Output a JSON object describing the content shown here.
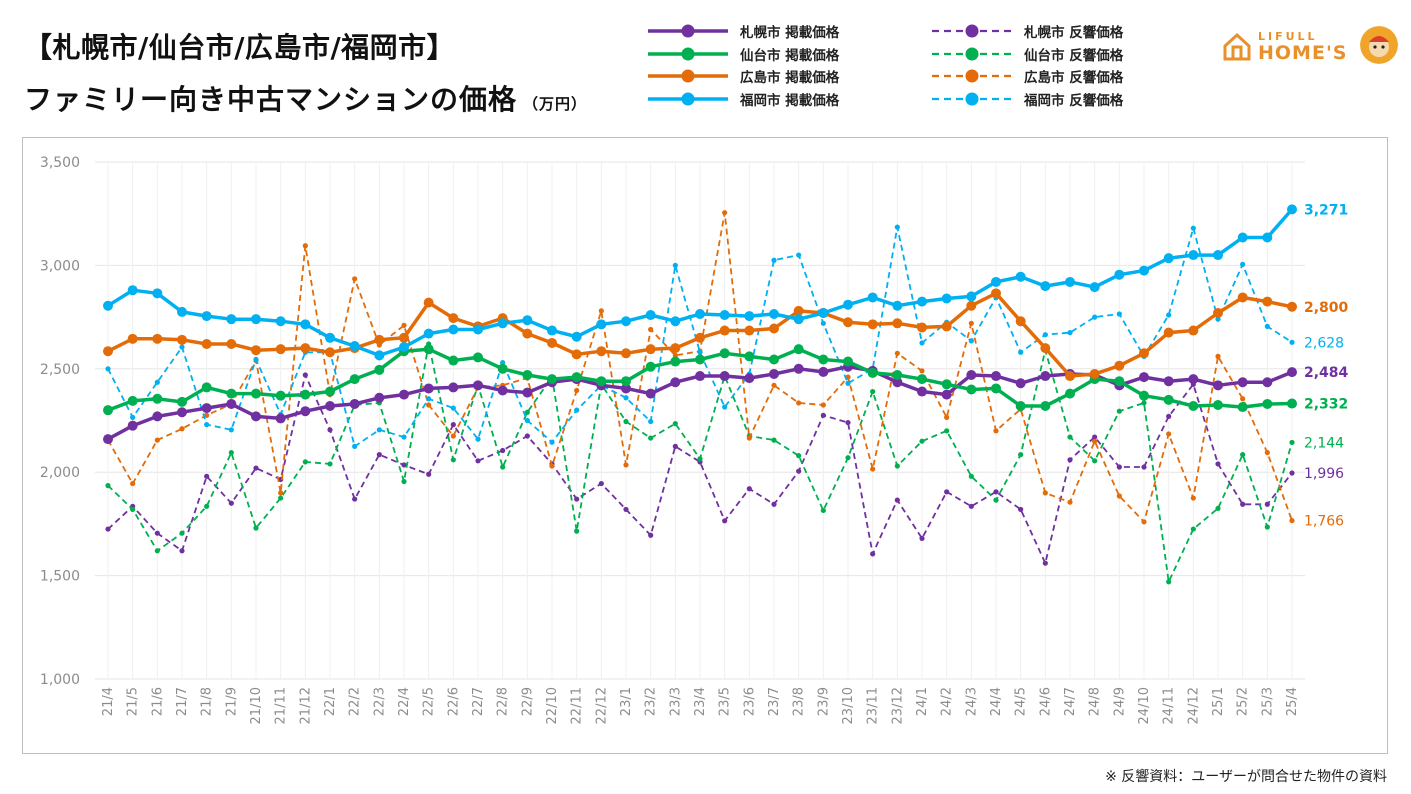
{
  "title_line1": "【札幌市/仙台市/広島市/福岡市】",
  "title_line2": "ファミリー向き中古マンションの価格",
  "title_unit": "（万円）",
  "footnote": "※ 反響資料：ユーザーが問合せた物件の資料",
  "logo": {
    "text_top": "LIFULL",
    "text_bottom": "HOME'S",
    "icon": "house-logo-icon",
    "mascot": "mascot-icon"
  },
  "colors": {
    "sapporo": "#7030a0",
    "sendai": "#00b050",
    "hiroshima": "#e36c09",
    "fukuoka": "#00b0f0",
    "grid": "#e6e6e6",
    "axis_text": "#8c8c8c"
  },
  "legend": [
    {
      "label": "札幌市 掲載価格",
      "color": "#7030a0",
      "dashed": false
    },
    {
      "label": "仙台市 掲載価格",
      "color": "#00b050",
      "dashed": false
    },
    {
      "label": "広島市 掲載価格",
      "color": "#e36c09",
      "dashed": false
    },
    {
      "label": "福岡市 掲載価格",
      "color": "#00b0f0",
      "dashed": false
    },
    {
      "label": "札幌市 反響価格",
      "color": "#7030a0",
      "dashed": true
    },
    {
      "label": "仙台市 反響価格",
      "color": "#00b050",
      "dashed": true
    },
    {
      "label": "広島市 反響価格",
      "color": "#e36c09",
      "dashed": true
    },
    {
      "label": "福岡市 反響価格",
      "color": "#00b0f0",
      "dashed": true
    }
  ],
  "chart_data": {
    "type": "line",
    "ylim": [
      1000,
      3500
    ],
    "yticks": [
      "1,000",
      "1,500",
      "2,000",
      "2,500",
      "3,000",
      "3,500"
    ],
    "grid": true,
    "legend_position": "top",
    "categories": [
      "21/4",
      "21/5",
      "21/6",
      "21/7",
      "21/8",
      "21/9",
      "21/10",
      "21/11",
      "21/12",
      "22/1",
      "22/2",
      "22/3",
      "22/4",
      "22/5",
      "22/6",
      "22/7",
      "22/8",
      "22/9",
      "22/10",
      "22/11",
      "22/12",
      "23/1",
      "23/2",
      "23/3",
      "23/4",
      "23/5",
      "23/6",
      "23/7",
      "23/8",
      "23/9",
      "23/10",
      "23/11",
      "23/12",
      "24/1",
      "24/2",
      "24/3",
      "24/4",
      "24/5",
      "24/6",
      "24/7",
      "24/8",
      "24/9",
      "24/10",
      "24/11",
      "24/12",
      "25/1",
      "25/2",
      "25/3",
      "25/4"
    ],
    "series": [
      {
        "name": "札幌市 掲載価格",
        "color": "#7030a0",
        "dashed": false,
        "end_label": "2,484",
        "values": [
          2160,
          2225,
          2270,
          2290,
          2310,
          2330,
          2270,
          2260,
          2295,
          2320,
          2330,
          2360,
          2375,
          2405,
          2410,
          2420,
          2395,
          2385,
          2435,
          2450,
          2420,
          2405,
          2380,
          2435,
          2465,
          2465,
          2455,
          2475,
          2500,
          2485,
          2510,
          2490,
          2435,
          2390,
          2375,
          2470,
          2465,
          2430,
          2465,
          2475,
          2470,
          2420,
          2460,
          2440,
          2450,
          2420,
          2435,
          2435,
          2484
        ]
      },
      {
        "name": "仙台市 掲載価格",
        "color": "#00b050",
        "dashed": false,
        "end_label": "2,332",
        "values": [
          2300,
          2345,
          2355,
          2340,
          2410,
          2380,
          2380,
          2370,
          2375,
          2390,
          2450,
          2495,
          2585,
          2595,
          2540,
          2555,
          2500,
          2470,
          2450,
          2460,
          2440,
          2440,
          2510,
          2535,
          2545,
          2575,
          2560,
          2545,
          2595,
          2545,
          2535,
          2480,
          2470,
          2450,
          2425,
          2400,
          2405,
          2320,
          2320,
          2380,
          2450,
          2440,
          2370,
          2350,
          2320,
          2325,
          2315,
          2330,
          2332
        ]
      },
      {
        "name": "広島市 掲載価格",
        "color": "#e36c09",
        "dashed": false,
        "end_label": "2,800",
        "values": [
          2585,
          2645,
          2645,
          2640,
          2620,
          2620,
          2590,
          2595,
          2600,
          2580,
          2600,
          2640,
          2650,
          2820,
          2745,
          2705,
          2745,
          2670,
          2625,
          2570,
          2585,
          2575,
          2595,
          2600,
          2650,
          2685,
          2685,
          2695,
          2780,
          2770,
          2725,
          2715,
          2720,
          2700,
          2705,
          2805,
          2865,
          2730,
          2600,
          2465,
          2475,
          2515,
          2575,
          2675,
          2685,
          2770,
          2845,
          2825,
          2800
        ]
      },
      {
        "name": "福岡市 掲載価格",
        "color": "#00b0f0",
        "dashed": false,
        "end_label": "3,271",
        "values": [
          2805,
          2880,
          2865,
          2775,
          2755,
          2740,
          2740,
          2730,
          2715,
          2650,
          2610,
          2565,
          2605,
          2670,
          2690,
          2690,
          2720,
          2735,
          2685,
          2655,
          2715,
          2730,
          2760,
          2730,
          2765,
          2760,
          2755,
          2765,
          2740,
          2770,
          2810,
          2845,
          2805,
          2825,
          2840,
          2850,
          2920,
          2945,
          2900,
          2920,
          2895,
          2955,
          2975,
          3035,
          3050,
          3050,
          3135,
          3135,
          3271
        ]
      },
      {
        "name": "札幌市 反響価格",
        "color": "#7030a0",
        "dashed": true,
        "end_label": "1,996",
        "values": [
          1725,
          1835,
          1705,
          1620,
          1980,
          1850,
          2020,
          1965,
          2470,
          2205,
          1870,
          2085,
          2035,
          1990,
          2230,
          2055,
          2105,
          2175,
          2040,
          1870,
          1945,
          1820,
          1695,
          2125,
          2050,
          1765,
          1920,
          1845,
          2005,
          2275,
          2240,
          1605,
          1865,
          1680,
          1905,
          1835,
          1905,
          1820,
          1560,
          2060,
          2170,
          2025,
          2025,
          2270,
          2425,
          2040,
          1845,
          1845,
          1996
        ]
      },
      {
        "name": "仙台市 反響価格",
        "color": "#00b050",
        "dashed": true,
        "end_label": "2,144",
        "values": [
          1935,
          1820,
          1620,
          1705,
          1835,
          2095,
          1730,
          1875,
          2050,
          2040,
          2325,
          2335,
          1955,
          2620,
          2060,
          2420,
          2025,
          2290,
          2460,
          1715,
          2425,
          2245,
          2165,
          2235,
          2065,
          2465,
          2175,
          2155,
          2080,
          1815,
          2070,
          2390,
          2030,
          2150,
          2200,
          1980,
          1865,
          2085,
          2590,
          2170,
          2055,
          2295,
          2335,
          1470,
          1725,
          1825,
          2085,
          1735,
          2144
        ]
      },
      {
        "name": "広島市 反響価格",
        "color": "#e36c09",
        "dashed": true,
        "end_label": "1,766",
        "values": [
          2155,
          1945,
          2155,
          2210,
          2275,
          2330,
          2540,
          1900,
          3095,
          2375,
          2935,
          2615,
          2710,
          2325,
          2175,
          2410,
          2420,
          2455,
          2030,
          2395,
          2780,
          2035,
          2690,
          2565,
          2585,
          3255,
          2165,
          2420,
          2335,
          2325,
          2460,
          2015,
          2575,
          2490,
          2265,
          2720,
          2200,
          2305,
          1900,
          1855,
          2150,
          1885,
          1760,
          2185,
          1875,
          2560,
          2355,
          2095,
          1766
        ]
      },
      {
        "name": "福岡市 反響価格",
        "color": "#00b0f0",
        "dashed": true,
        "end_label": "2,628",
        "values": [
          2500,
          2265,
          2435,
          2605,
          2230,
          2205,
          2545,
          2280,
          2580,
          2580,
          2125,
          2205,
          2170,
          2355,
          2310,
          2160,
          2530,
          2250,
          2145,
          2300,
          2420,
          2360,
          2245,
          3000,
          2580,
          2315,
          2475,
          3025,
          3050,
          2720,
          2430,
          2500,
          3185,
          2625,
          2725,
          2635,
          2845,
          2580,
          2665,
          2675,
          2750,
          2765,
          2560,
          2760,
          3180,
          2740,
          3005,
          2705,
          2628
        ]
      }
    ]
  }
}
